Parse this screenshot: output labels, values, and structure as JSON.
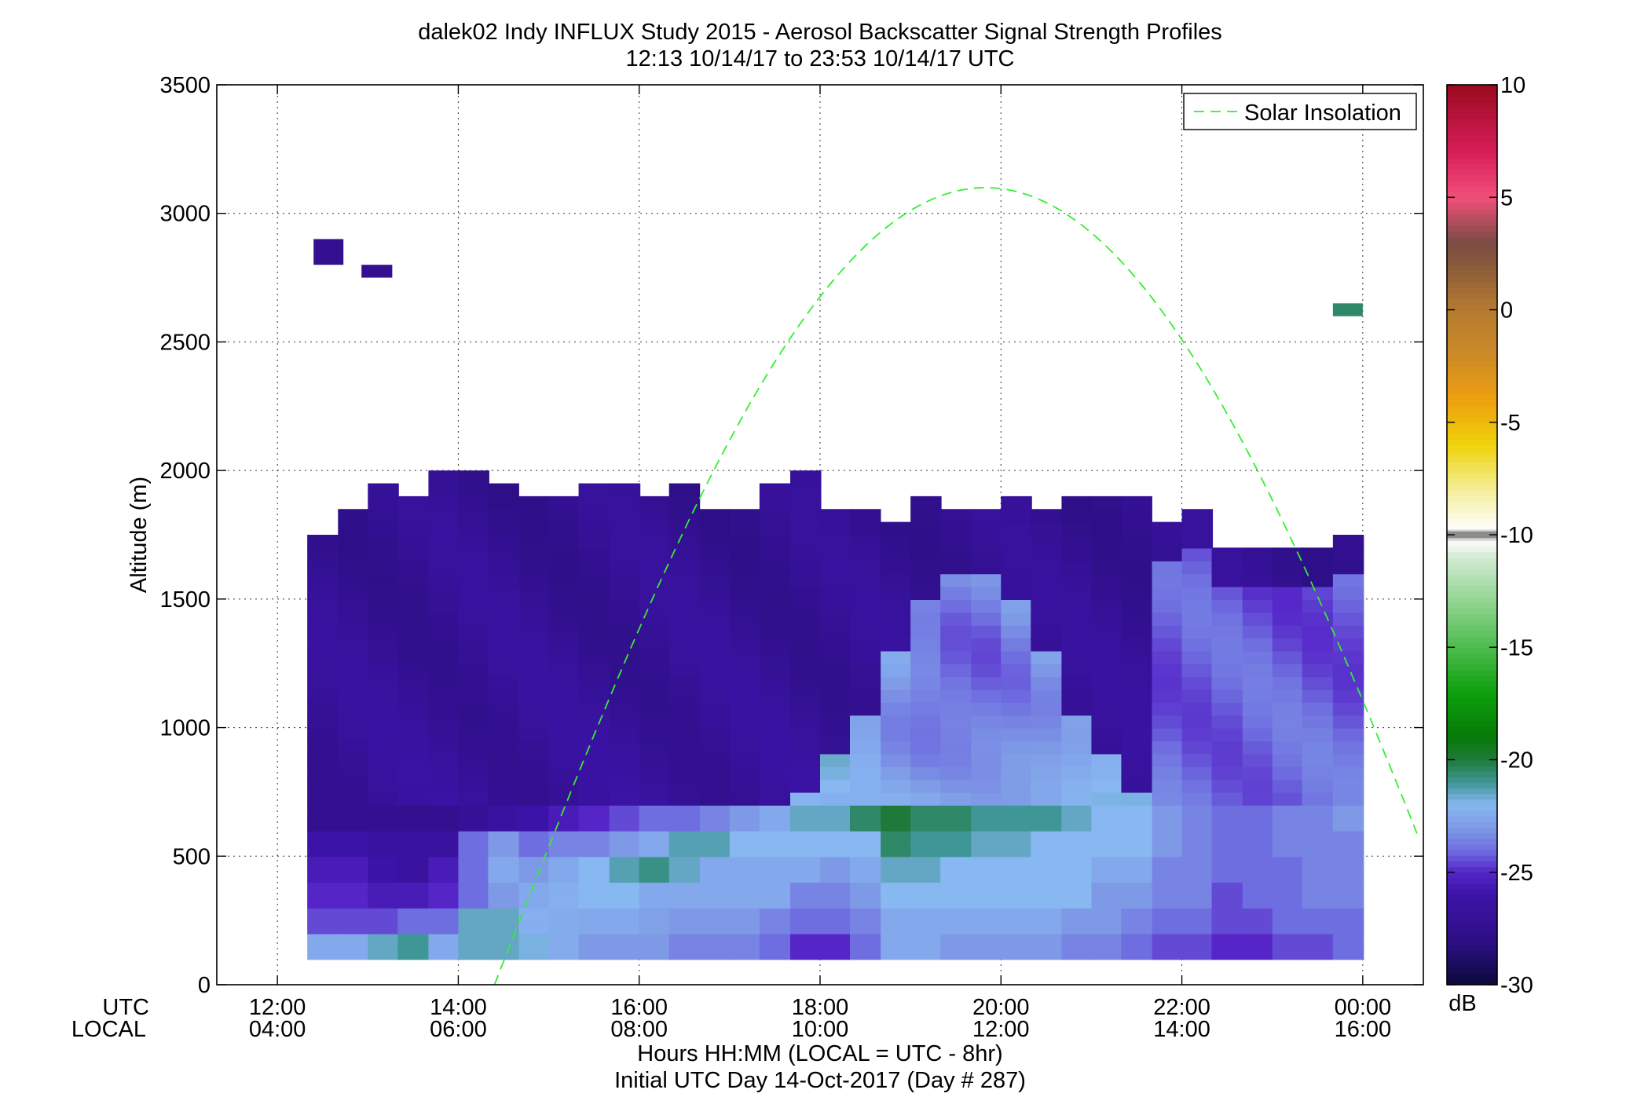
{
  "chart_data": {
    "type": "heatmap",
    "title_line1": "dalek02 Indy INFLUX Study 2015 - Aerosol Backscatter Signal Strength Profiles",
    "title_line2": "12:13 10/14/17 to 23:53 10/14/17  UTC",
    "ylabel": "Altitude (m)",
    "xlabel_line1": "Hours HH:MM  (LOCAL = UTC - 8hr)",
    "xlabel_line2": "Initial UTC Day 14-Oct-2017 (Day # 287)",
    "x_row_label_utc": "UTC",
    "x_row_label_local": "LOCAL",
    "xlim": [
      11.33,
      24.67
    ],
    "ylim": [
      0,
      3500
    ],
    "x_ticks": [
      {
        "value": 12,
        "utc": "12:00",
        "local": "04:00"
      },
      {
        "value": 14,
        "utc": "14:00",
        "local": "06:00"
      },
      {
        "value": 16,
        "utc": "16:00",
        "local": "08:00"
      },
      {
        "value": 18,
        "utc": "18:00",
        "local": "10:00"
      },
      {
        "value": 20,
        "utc": "20:00",
        "local": "12:00"
      },
      {
        "value": 22,
        "utc": "22:00",
        "local": "14:00"
      },
      {
        "value": 24,
        "utc": "00:00",
        "local": "16:00"
      }
    ],
    "y_ticks": [
      {
        "value": 0,
        "label": "0"
      },
      {
        "value": 500,
        "label": "500"
      },
      {
        "value": 1000,
        "label": "1000"
      },
      {
        "value": 1500,
        "label": "1500"
      },
      {
        "value": 2000,
        "label": "2000"
      },
      {
        "value": 2500,
        "label": "2500"
      },
      {
        "value": 3000,
        "label": "3000"
      },
      {
        "value": 3500,
        "label": "3500"
      }
    ],
    "grid": true,
    "legend": {
      "position": "top-right",
      "entries": [
        "Solar Insolation"
      ]
    },
    "solar_curve": {
      "color": "#33ee33",
      "peak_time_utc": 19.83,
      "peak_altitude": 3100,
      "start_time_utc": 14.4,
      "end_time_utc": 24.65
    },
    "colorbar": {
      "unit": "dB",
      "min": -30,
      "max": 10,
      "ticks": [
        {
          "value": 10,
          "label": "10"
        },
        {
          "value": 5,
          "label": "5"
        },
        {
          "value": 0,
          "label": "0"
        },
        {
          "value": -5,
          "label": "-5"
        },
        {
          "value": -10,
          "label": "-10"
        },
        {
          "value": -15,
          "label": "-15"
        },
        {
          "value": -20,
          "label": "-20"
        },
        {
          "value": -25,
          "label": "-25"
        },
        {
          "value": -30,
          "label": "-30"
        }
      ],
      "stops": [
        {
          "v": -30,
          "c": "#0a0a3c"
        },
        {
          "v": -28,
          "c": "#2e0f86"
        },
        {
          "v": -26,
          "c": "#3c13a8"
        },
        {
          "v": -25,
          "c": "#5525c8"
        },
        {
          "v": -24,
          "c": "#6f6ee0"
        },
        {
          "v": -23,
          "c": "#7e9ae6"
        },
        {
          "v": -22,
          "c": "#88b8f2"
        },
        {
          "v": -21,
          "c": "#3f9696"
        },
        {
          "v": -20,
          "c": "#1f7a3a"
        },
        {
          "v": -19,
          "c": "#087a08"
        },
        {
          "v": -17,
          "c": "#0ca00c"
        },
        {
          "v": -15,
          "c": "#4dbb4d"
        },
        {
          "v": -13,
          "c": "#8fd48f"
        },
        {
          "v": -11,
          "c": "#d3ead3"
        },
        {
          "v": -10.2,
          "c": "#ffffff"
        },
        {
          "v": -10,
          "c": "#8c8c8c"
        },
        {
          "v": -9.8,
          "c": "#ffffff"
        },
        {
          "v": -8,
          "c": "#f5ee9a"
        },
        {
          "v": -6,
          "c": "#efd30a"
        },
        {
          "v": -4,
          "c": "#eea010"
        },
        {
          "v": -2,
          "c": "#cc8a26"
        },
        {
          "v": 0,
          "c": "#b57a30"
        },
        {
          "v": 2,
          "c": "#8a5a3a"
        },
        {
          "v": 3,
          "c": "#7a4c44"
        },
        {
          "v": 5,
          "c": "#f0507a"
        },
        {
          "v": 7,
          "c": "#d81e5a"
        },
        {
          "v": 10,
          "c": "#9a0a1e"
        }
      ]
    },
    "time_bins_start_utc": 12.33,
    "time_bin_hours": 0.333,
    "altitude_bins": [
      100,
      150,
      200,
      250,
      300,
      350,
      400,
      450,
      500,
      550,
      600,
      650,
      700,
      750,
      800,
      850,
      900,
      950,
      1000,
      1050,
      1100,
      1150,
      1200,
      1250,
      1300,
      1350,
      1400,
      1450,
      1500,
      1550,
      1600,
      1650,
      1700,
      1750,
      1800,
      1850,
      1900,
      1950,
      2000
    ],
    "bin_height_m": 50,
    "profiles": [
      {
        "t": 12.33,
        "top": 1750,
        "base_vals": [
          -22.5,
          -24.5,
          -25,
          -25.5,
          -26,
          -27.5
        ]
      },
      {
        "t": 12.67,
        "top": 1850,
        "base_vals": [
          -22.5,
          -24.5,
          -25,
          -25.5,
          -26,
          -27.5
        ]
      },
      {
        "t": 13.0,
        "top": 1950,
        "base_vals": [
          -21.5,
          -24.5,
          -25.5,
          -26,
          -26.5,
          -27.5
        ]
      },
      {
        "t": 13.33,
        "top": 1900,
        "base_vals": [
          -21,
          -24,
          -25.5,
          -26.5,
          -26.5,
          -27.5
        ]
      },
      {
        "t": 13.67,
        "top": 2000,
        "base_vals": [
          -22.5,
          -24,
          -25,
          -25.5,
          -26.5,
          -27.5
        ]
      },
      {
        "t": 14.0,
        "top": 2000,
        "base_vals": [
          -21.5,
          -21.5,
          -24,
          -24,
          -24,
          -27
        ]
      },
      {
        "t": 14.33,
        "top": 1950,
        "base_vals": [
          -21.5,
          -21.5,
          -23,
          -22.5,
          -23,
          -26.5
        ]
      },
      {
        "t": 14.67,
        "top": 1900,
        "base_vals": [
          -21.8,
          -22.3,
          -22.5,
          -23,
          -24,
          -26
        ]
      },
      {
        "t": 15.0,
        "top": 1900,
        "base_vals": [
          -22.4,
          -22.4,
          -22.3,
          -22.5,
          -23.5,
          -25.5
        ]
      },
      {
        "t": 15.33,
        "top": 1950,
        "base_vals": [
          -23,
          -22.5,
          -22,
          -22,
          -23.5,
          -25
        ]
      },
      {
        "t": 15.67,
        "top": 1950,
        "base_vals": [
          -23,
          -22.5,
          -22,
          -21.3,
          -23,
          -24.5
        ]
      },
      {
        "t": 16.0,
        "top": 1900,
        "base_vals": [
          -23,
          -22.8,
          -22.5,
          -20.8,
          -22.5,
          -24
        ]
      },
      {
        "t": 16.33,
        "top": 1950,
        "base_vals": [
          -23.5,
          -23,
          -22.5,
          -21.5,
          -21.3,
          -24
        ]
      },
      {
        "t": 16.67,
        "top": 1850,
        "base_vals": [
          -23.5,
          -23,
          -22.5,
          -22.5,
          -21.3,
          -23.5
        ]
      },
      {
        "t": 17.0,
        "top": 1850,
        "base_vals": [
          -23.5,
          -23,
          -22.5,
          -22.5,
          -22,
          -23
        ]
      },
      {
        "t": 17.33,
        "top": 1950,
        "base_vals": [
          -24,
          -23.5,
          -22.5,
          -22.5,
          -22,
          -22.5
        ]
      },
      {
        "t": 17.67,
        "top": 2000,
        "base_vals": [
          -25,
          -24,
          -23.5,
          -22.5,
          -22,
          -21.5
        ]
      },
      {
        "t": 18.0,
        "top": 1850,
        "base_vals": [
          -25,
          -24,
          -23.5,
          -23,
          -22,
          -21.5
        ]
      },
      {
        "t": 18.33,
        "top": 1850,
        "base_vals": [
          -24,
          -23.5,
          -23,
          -22.5,
          -22,
          -20.5
        ]
      },
      {
        "t": 18.67,
        "top": 1800,
        "base_vals": [
          -22.5,
          -22.5,
          -22,
          -21.5,
          -20.5,
          -20
        ]
      },
      {
        "t": 19.0,
        "top": 1900,
        "base_vals": [
          -22.5,
          -22.5,
          -22,
          -21.5,
          -21,
          -20.5
        ]
      },
      {
        "t": 19.33,
        "top": 1850,
        "base_vals": [
          -23,
          -22.5,
          -22,
          -22,
          -21,
          -20.5
        ]
      },
      {
        "t": 19.67,
        "top": 1850,
        "base_vals": [
          -23,
          -22.5,
          -22,
          -22,
          -21.5,
          -21
        ]
      },
      {
        "t": 20.0,
        "top": 1900,
        "base_vals": [
          -23,
          -22.5,
          -22,
          -22,
          -21.5,
          -21
        ]
      },
      {
        "t": 20.33,
        "top": 1850,
        "base_vals": [
          -23,
          -22.5,
          -22,
          -22,
          -22,
          -21
        ]
      },
      {
        "t": 20.67,
        "top": 1900,
        "base_vals": [
          -23.5,
          -23,
          -22,
          -22,
          -22,
          -21.5
        ]
      },
      {
        "t": 21.0,
        "top": 1900,
        "base_vals": [
          -23.5,
          -23,
          -23,
          -22.5,
          -22,
          -22
        ]
      },
      {
        "t": 21.33,
        "top": 1900,
        "base_vals": [
          -24,
          -23.5,
          -23,
          -22.5,
          -22,
          -22
        ]
      },
      {
        "t": 21.67,
        "top": 1800,
        "base_vals": [
          -24.5,
          -24,
          -23.5,
          -23.5,
          -23,
          -23
        ]
      },
      {
        "t": 22.0,
        "top": 1850,
        "base_vals": [
          -24.5,
          -24,
          -23.5,
          -23.5,
          -23.5,
          -23.5
        ]
      },
      {
        "t": 22.33,
        "top": 1700,
        "base_vals": [
          -25,
          -24.5,
          -24.5,
          -24,
          -24,
          -24
        ]
      },
      {
        "t": 22.67,
        "top": 1700,
        "base_vals": [
          -25,
          -24.5,
          -24,
          -24,
          -24,
          -24
        ]
      },
      {
        "t": 23.0,
        "top": 1700,
        "base_vals": [
          -24.5,
          -24,
          -24,
          -24,
          -23.5,
          -23.5
        ]
      },
      {
        "t": 23.33,
        "top": 1700,
        "base_vals": [
          -24.5,
          -24,
          -23.5,
          -23.5,
          -23.5,
          -23.5
        ]
      },
      {
        "t": 23.67,
        "top": 1750,
        "base_vals": [
          -24,
          -24,
          -23.5,
          -23.5,
          -23.5,
          -23
        ]
      }
    ],
    "isolated_cells": [
      {
        "t_start": 12.4,
        "t_end": 12.73,
        "alt_start": 2800,
        "alt_end": 2900,
        "value": -27.5
      },
      {
        "t_start": 12.93,
        "t_end": 13.27,
        "alt_start": 2750,
        "alt_end": 2800,
        "value": -27.5
      },
      {
        "t_start": 23.67,
        "t_end": 24.0,
        "alt_start": 2600,
        "alt_end": 2650,
        "value": -20.5
      }
    ]
  }
}
